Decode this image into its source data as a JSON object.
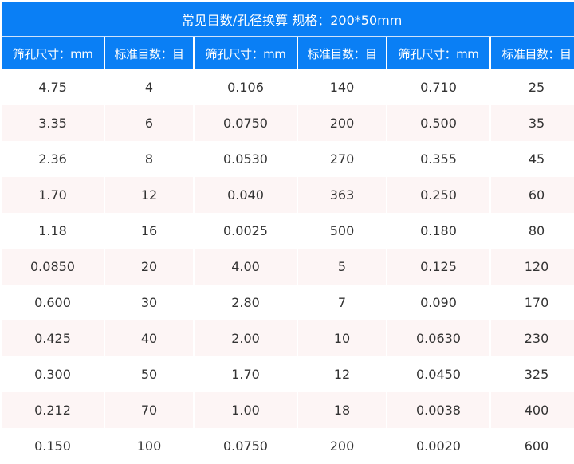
{
  "title": "常见目数/孔径换算 规格：200*50mm",
  "headers": [
    "筛孔尺寸：mm",
    "标准目数：目",
    "筛孔尺寸：mm",
    "标准目数：目",
    "筛孔尺寸：mm",
    "标准目数：目"
  ],
  "rows": [
    [
      "4.75",
      "4",
      "0.106",
      "140",
      "0.710",
      "25"
    ],
    [
      "3.35",
      "6",
      "0.0750",
      "200",
      "0.500",
      "35"
    ],
    [
      "2.36",
      "8",
      "0.0530",
      "270",
      "0.355",
      "45"
    ],
    [
      "1.70",
      "12",
      "0.040",
      "363",
      "0.250",
      "60"
    ],
    [
      "1.18",
      "16",
      "0.0025",
      "500",
      "0.180",
      "80"
    ],
    [
      "0.0850",
      "20",
      "4.00",
      "5",
      "0.125",
      "120"
    ],
    [
      "0.600",
      "30",
      "2.80",
      "7",
      "0.090",
      "170"
    ],
    [
      "0.425",
      "40",
      "2.00",
      "10",
      "0.0630",
      "230"
    ],
    [
      "0.300",
      "50",
      "1.70",
      "12",
      "0.0450",
      "325"
    ],
    [
      "0.212",
      "70",
      "1.00",
      "18",
      "0.0038",
      "400"
    ],
    [
      "0.150",
      "100",
      "0.0750",
      "200",
      "0.0020",
      "600"
    ]
  ],
  "colors": {
    "header": "#0a7ff5",
    "stripe": "#fdf5f5"
  }
}
